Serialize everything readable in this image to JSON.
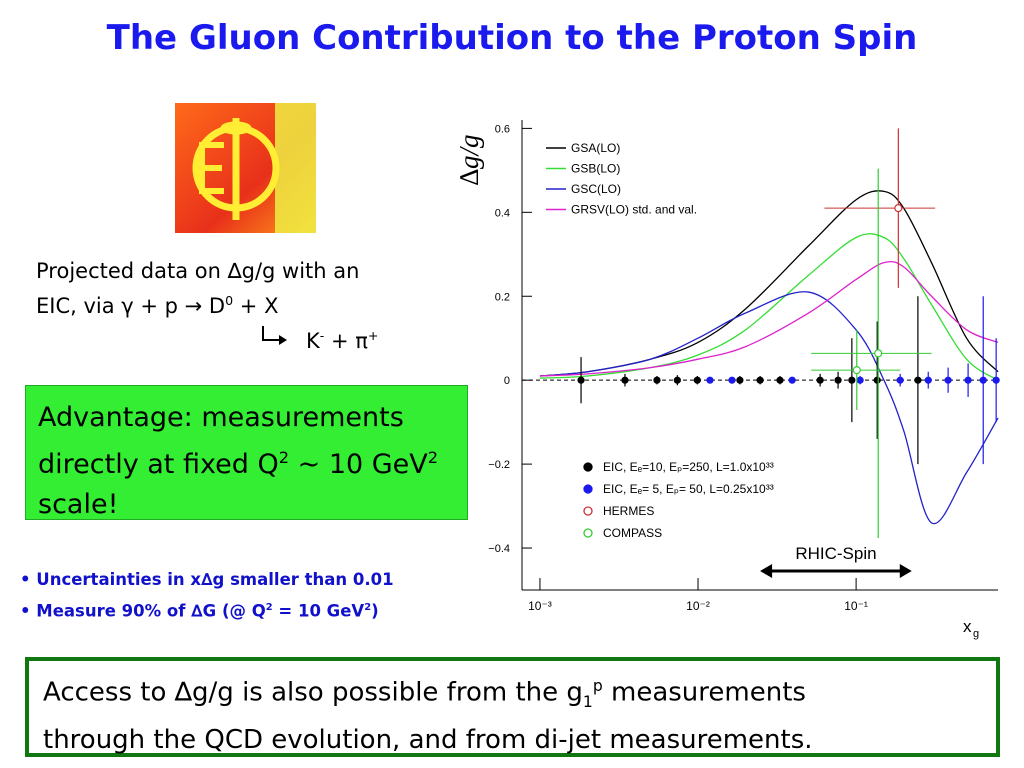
{
  "title": "The Gluon Contribution to the Proton Spin",
  "projection": {
    "line1": "Projected data on ∆g/g with an",
    "line2": "EIC, via γ + p → D",
    "line2_sup": "0",
    "line2_end": " + X",
    "line3": "K",
    "line3_sup": "-",
    "line3_mid": " + π",
    "line3_sup2": "+"
  },
  "advantage": {
    "text1": "Advantage: measurements directly at fixed Q",
    "sup1": "2",
    "text2": " ~ 10 GeV",
    "sup2": "2",
    "text3": " scale!"
  },
  "bullets": {
    "b1": "Uncertainties in x∆g smaller than 0.01",
    "b2_1": "Measure 90% of ∆G (@ Q",
    "b2_sup1": "2",
    "b2_2": " = 10 GeV",
    "b2_sup2": "2",
    "b2_3": ")"
  },
  "footer": {
    "text1": "Access to ∆g/g is also possible from the g",
    "sub": "1",
    "sup": "p",
    "text2": " measurements",
    "line2": "through the QCD evolution, and from di-jet measurements."
  },
  "chart_data": {
    "type": "line",
    "xscale": "log",
    "xlim": [
      0.00077,
      0.79
    ],
    "ylim": [
      -0.5,
      0.62
    ],
    "xticks": [
      {
        "value": 0.001,
        "label": "10⁻³"
      },
      {
        "value": 0.01,
        "label": "10⁻²"
      },
      {
        "value": 0.1,
        "label": "10⁻¹"
      }
    ],
    "yticks": [
      0.6,
      0.4,
      0.2,
      0,
      {
        "value": -0.2,
        "label": "−0.2"
      },
      {
        "value": -0.4,
        "label": "−0.4"
      }
    ],
    "ylabel": "∆g/g",
    "xlabel": "x",
    "xlabel_sub": "g",
    "x": [
      0.001,
      0.002,
      0.005,
      0.01,
      0.02,
      0.05,
      0.1,
      0.15,
      0.2,
      0.3,
      0.5,
      0.79
    ],
    "series": [
      {
        "name": "GSA(LO)",
        "color": "#000000",
        "values": [
          0.01,
          0.02,
          0.05,
          0.09,
          0.17,
          0.32,
          0.43,
          0.45,
          0.41,
          0.28,
          0.1,
          0.02
        ]
      },
      {
        "name": "GSB(LO)",
        "color": "#33dd33",
        "values": [
          0.005,
          0.01,
          0.03,
          0.06,
          0.12,
          0.25,
          0.34,
          0.34,
          0.29,
          0.18,
          0.05,
          0.0
        ]
      },
      {
        "name": "GSC(LO)",
        "color": "#2222cc",
        "values": [
          0.01,
          0.02,
          0.05,
          0.1,
          0.16,
          0.21,
          0.12,
          0.0,
          -0.12,
          -0.34,
          -0.22,
          -0.09
        ]
      },
      {
        "name": "GRSV(LO) std. and val.",
        "color": "#dd22cc",
        "values": [
          0.01,
          0.015,
          0.03,
          0.05,
          0.08,
          0.16,
          0.24,
          0.28,
          0.27,
          0.2,
          0.12,
          0.09
        ]
      }
    ],
    "points": [
      {
        "name": "EIC, Eₑ=10, Eₚ=250, L=1.0x10³³",
        "color": "#000000",
        "marker": "filled",
        "x": [
          0.00182,
          0.00345,
          0.0055,
          0.0074,
          0.0099,
          0.0184,
          0.0247,
          0.033,
          0.0592,
          0.0769,
          0.094,
          0.136,
          0.246
        ],
        "values": [
          0,
          0,
          0,
          0,
          0,
          0,
          0,
          0,
          0,
          0,
          0,
          0,
          0
        ],
        "errors": [
          0.055,
          0.015,
          0.01,
          0.012,
          0.01,
          0.01,
          0.01,
          0.01,
          0.015,
          0.02,
          0.1,
          0.14,
          0.2
        ]
      },
      {
        "name": "EIC, Eₑ= 5, Eₚ= 50, L=0.25x10³³",
        "color": "#1a1aee",
        "marker": "filled",
        "x": [
          0.0119,
          0.0164,
          0.0394,
          0.106,
          0.19,
          0.286,
          0.382,
          0.511,
          0.637,
          0.769
        ],
        "values": [
          0,
          0,
          0,
          0,
          0,
          0,
          0,
          0,
          0,
          0
        ],
        "errors": [
          0.005,
          0.005,
          0.005,
          0.01,
          0.015,
          0.02,
          0.03,
          0.04,
          0.2,
          0.1
        ]
      },
      {
        "name": "HERMES",
        "color": "#cc3333",
        "marker": "open",
        "x": [
          0.185
        ],
        "values": [
          0.41
        ],
        "errors": [
          0.19
        ],
        "xlow": [
          0.063
        ],
        "xhigh": [
          0.316
        ]
      },
      {
        "name": "COMPASS",
        "color": "#33cc33",
        "marker": "open",
        "x": [
          0.101,
          0.138
        ],
        "values": [
          0.024,
          0.064
        ],
        "errors": [
          0.095,
          0.44
        ],
        "xlow": [
          0.052,
          0.052
        ],
        "xhigh": [
          0.19,
          0.3
        ]
      }
    ],
    "annotation": "RHIC-Spin",
    "annotation_range": [
      0.0247,
      0.225
    ]
  }
}
